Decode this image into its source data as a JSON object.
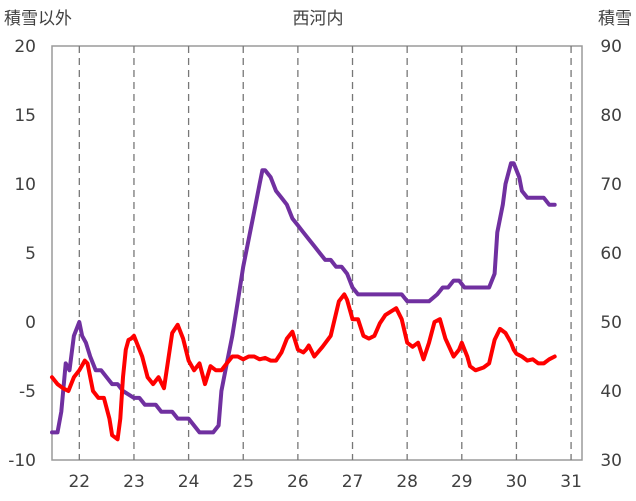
{
  "chart_data": {
    "type": "line",
    "title": "西河内",
    "left_axis_label": "積雪以外",
    "right_axis_label": "積雪",
    "left_ylim": [
      -10,
      20
    ],
    "left_ticks": [
      "20",
      "15",
      "10",
      "5",
      "0",
      "-5",
      "-10"
    ],
    "right_ylim": [
      30,
      90
    ],
    "right_ticks": [
      "90",
      "80",
      "70",
      "60",
      "50",
      "40",
      "30"
    ],
    "x_ticks": [
      "22",
      "23",
      "24",
      "25",
      "26",
      "27",
      "28",
      "29",
      "30",
      "31"
    ],
    "xlim": [
      21.5,
      31.2
    ],
    "grid": "vertical dashed",
    "series": [
      {
        "axis": "right",
        "color": "#7030a0",
        "x": [
          21.5,
          21.6,
          21.67,
          21.75,
          21.82,
          21.9,
          22.0,
          22.05,
          22.12,
          22.2,
          22.3,
          22.4,
          22.5,
          22.6,
          22.7,
          22.8,
          23.0,
          23.1,
          23.2,
          23.4,
          23.5,
          23.6,
          23.7,
          23.8,
          24.0,
          24.2,
          24.4,
          24.45,
          24.55,
          24.6,
          24.7,
          24.8,
          24.9,
          25.0,
          25.1,
          25.2,
          25.3,
          25.35,
          25.4,
          25.5,
          25.6,
          25.7,
          25.8,
          25.9,
          26.0,
          26.1,
          26.2,
          26.3,
          26.4,
          26.5,
          26.6,
          26.7,
          26.8,
          26.9,
          27.0,
          27.1,
          27.2,
          27.3,
          27.5,
          27.7,
          27.9,
          28.0,
          28.2,
          28.4,
          28.55,
          28.65,
          28.75,
          28.85,
          28.95,
          29.05,
          29.15,
          29.3,
          29.5,
          29.6,
          29.65,
          29.75,
          29.8,
          29.9,
          29.95,
          30.05,
          30.1,
          30.2,
          30.3,
          30.4,
          30.5,
          30.6,
          30.7
        ],
        "values": [
          34,
          34,
          37,
          44,
          43,
          48,
          50,
          48,
          47,
          45,
          43,
          43,
          42,
          41,
          41,
          40,
          39,
          39,
          38,
          38,
          37,
          37,
          37,
          36,
          36,
          34,
          34,
          34,
          35,
          40,
          44,
          48,
          53,
          58,
          62,
          66,
          70,
          72,
          72,
          71,
          69,
          68,
          67,
          65,
          64,
          63,
          62,
          61,
          60,
          59,
          59,
          58,
          58,
          57,
          55,
          54,
          54,
          54,
          54,
          54,
          54,
          53,
          53,
          53,
          54,
          55,
          55,
          56,
          56,
          55,
          55,
          55,
          55,
          57,
          63,
          67,
          70,
          73,
          73,
          71,
          69,
          68,
          68,
          68,
          68,
          67,
          67
        ]
      },
      {
        "axis": "left",
        "color": "#ff0000",
        "x": [
          21.5,
          21.6,
          21.7,
          21.8,
          21.9,
          22.0,
          22.1,
          22.15,
          22.25,
          22.35,
          22.45,
          22.55,
          22.6,
          22.7,
          22.75,
          22.8,
          22.85,
          22.9,
          22.95,
          23.0,
          23.05,
          23.15,
          23.25,
          23.35,
          23.45,
          23.55,
          23.7,
          23.8,
          23.9,
          24.0,
          24.1,
          24.2,
          24.3,
          24.4,
          24.5,
          24.6,
          24.7,
          24.8,
          24.9,
          25.0,
          25.1,
          25.2,
          25.3,
          25.4,
          25.5,
          25.6,
          25.7,
          25.8,
          25.9,
          26.0,
          26.1,
          26.15,
          26.2,
          26.3,
          26.45,
          26.6,
          26.75,
          26.85,
          26.9,
          27.0,
          27.1,
          27.2,
          27.3,
          27.4,
          27.5,
          27.6,
          27.8,
          27.9,
          28.0,
          28.1,
          28.2,
          28.3,
          28.4,
          28.5,
          28.6,
          28.7,
          28.85,
          28.95,
          29.0,
          29.05,
          29.1,
          29.15,
          29.25,
          29.4,
          29.5,
          29.6,
          29.7,
          29.8,
          29.9,
          29.95,
          30.0,
          30.1,
          30.2,
          30.3,
          30.4,
          30.5,
          30.6,
          30.7
        ],
        "values": [
          -4,
          -4.5,
          -4.8,
          -5,
          -4,
          -3.5,
          -2.8,
          -3,
          -5,
          -5.5,
          -5.5,
          -7,
          -8.2,
          -8.5,
          -7,
          -4,
          -2,
          -1.3,
          -1.2,
          -1,
          -1.5,
          -2.5,
          -4,
          -4.5,
          -4,
          -4.8,
          -0.8,
          -0.2,
          -1.2,
          -2.8,
          -3.5,
          -3,
          -4.5,
          -3.2,
          -3.5,
          -3.5,
          -3,
          -2.5,
          -2.5,
          -2.7,
          -2.5,
          -2.5,
          -2.7,
          -2.6,
          -2.8,
          -2.8,
          -2.2,
          -1.2,
          -0.7,
          -2,
          -2.2,
          -2,
          -1.7,
          -2.5,
          -1.8,
          -1,
          1.5,
          2,
          1.6,
          0.2,
          0.2,
          -1,
          -1.2,
          -1,
          -0.1,
          0.5,
          1,
          0.2,
          -1.5,
          -1.8,
          -1.5,
          -2.7,
          -1.5,
          0,
          0.2,
          -1.2,
          -2.5,
          -2,
          -1.5,
          -2,
          -2.5,
          -3.2,
          -3.5,
          -3.3,
          -3,
          -1.3,
          -0.5,
          -0.8,
          -1.5,
          -2,
          -2.3,
          -2.5,
          -2.8,
          -2.7,
          -3,
          -3,
          -2.7,
          -2.5
        ]
      }
    ]
  }
}
